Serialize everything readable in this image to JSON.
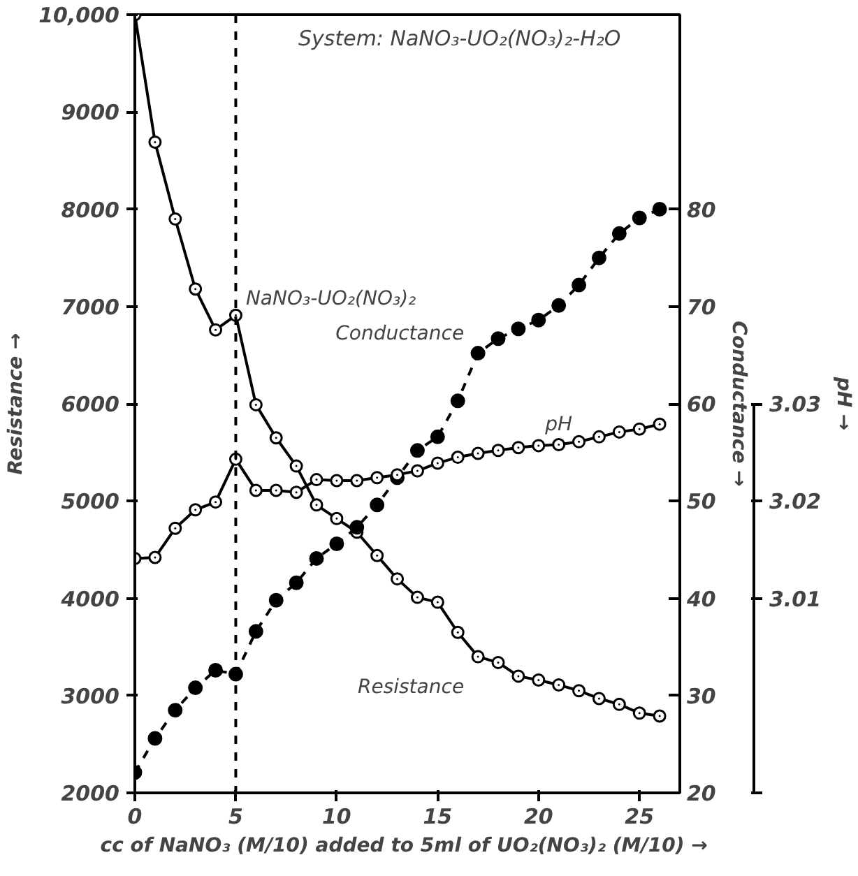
{
  "chart_data": {
    "type": "line",
    "title": "System: NaNO₃-UO₂(NO₃)₂-H₂O",
    "xlabel": "cc of NaNO₃ (M/10) added to 5ml of UO₂(NO₃)₂ (M/10)  →",
    "ylabel": "Resistance →",
    "y2label": "Conductance →",
    "y3label": "pH →",
    "x": [
      0,
      1,
      2,
      3,
      4,
      5,
      6,
      7,
      8,
      9,
      10,
      11,
      12,
      13,
      14,
      15,
      16,
      17,
      18,
      19,
      20,
      21,
      22,
      23,
      24,
      25,
      26
    ],
    "xlim": [
      0,
      27
    ],
    "xticks": [
      0,
      5,
      10,
      15,
      20,
      25
    ],
    "ylim": [
      2000,
      10000
    ],
    "yticks": [
      2000,
      3000,
      4000,
      5000,
      6000,
      7000,
      8000,
      9000,
      {
        "value": 10000,
        "label": "10,000"
      }
    ],
    "y2lim": [
      20,
      100
    ],
    "y2ticks": [
      20,
      30,
      40,
      50,
      60,
      70,
      80
    ],
    "y3lim": [
      2.99,
      3.07
    ],
    "y3ticks": [
      {
        "value": 2.99,
        "label": null
      },
      3.01,
      3.02,
      3.03
    ],
    "grid": false,
    "series": [
      {
        "name": "Resistance",
        "color": "#000000",
        "marker": "circle",
        "line_style": "solid",
        "values": [
          10000,
          8690,
          7900,
          7180,
          6760,
          6910,
          5990,
          5650,
          5360,
          4960,
          4820,
          4680,
          4440,
          4200,
          4010,
          3960,
          3650,
          3400,
          3340,
          3200,
          3160,
          3110,
          3050,
          2970,
          2910,
          2820,
          2790
        ]
      },
      {
        "name": "Conductance",
        "color": "#000000",
        "marker": "circle",
        "line_style": "dashed",
        "axis": "y2",
        "values": [
          22.1,
          25.6,
          28.5,
          30.8,
          32.6,
          32.2,
          36.6,
          39.8,
          41.6,
          44.1,
          45.6,
          47.3,
          49.6,
          52.4,
          55.2,
          56.6,
          60.3,
          65.2,
          66.7,
          67.7,
          68.6,
          70.1,
          72.2,
          75.0,
          77.5,
          79.1,
          80.0
        ]
      },
      {
        "name": "pH",
        "color": "#000000",
        "marker": "circle",
        "line_style": "solid",
        "axis": "y3",
        "values": [
          3.0141,
          3.0142,
          3.0172,
          3.0191,
          3.0199,
          3.0243,
          3.0211,
          3.0211,
          3.0209,
          3.0222,
          3.0221,
          3.0221,
          3.0224,
          3.0227,
          3.0231,
          3.0239,
          3.0245,
          3.0249,
          3.0252,
          3.0255,
          3.0257,
          3.0258,
          3.0261,
          3.0266,
          3.0271,
          3.0274,
          3.0279
        ]
      }
    ],
    "ref_lines": [
      {
        "axis": "x",
        "value": 5,
        "label": "NaNO₃-UO₂(NO₃)₂",
        "line_style": "dashed",
        "color": "#000000"
      }
    ]
  }
}
